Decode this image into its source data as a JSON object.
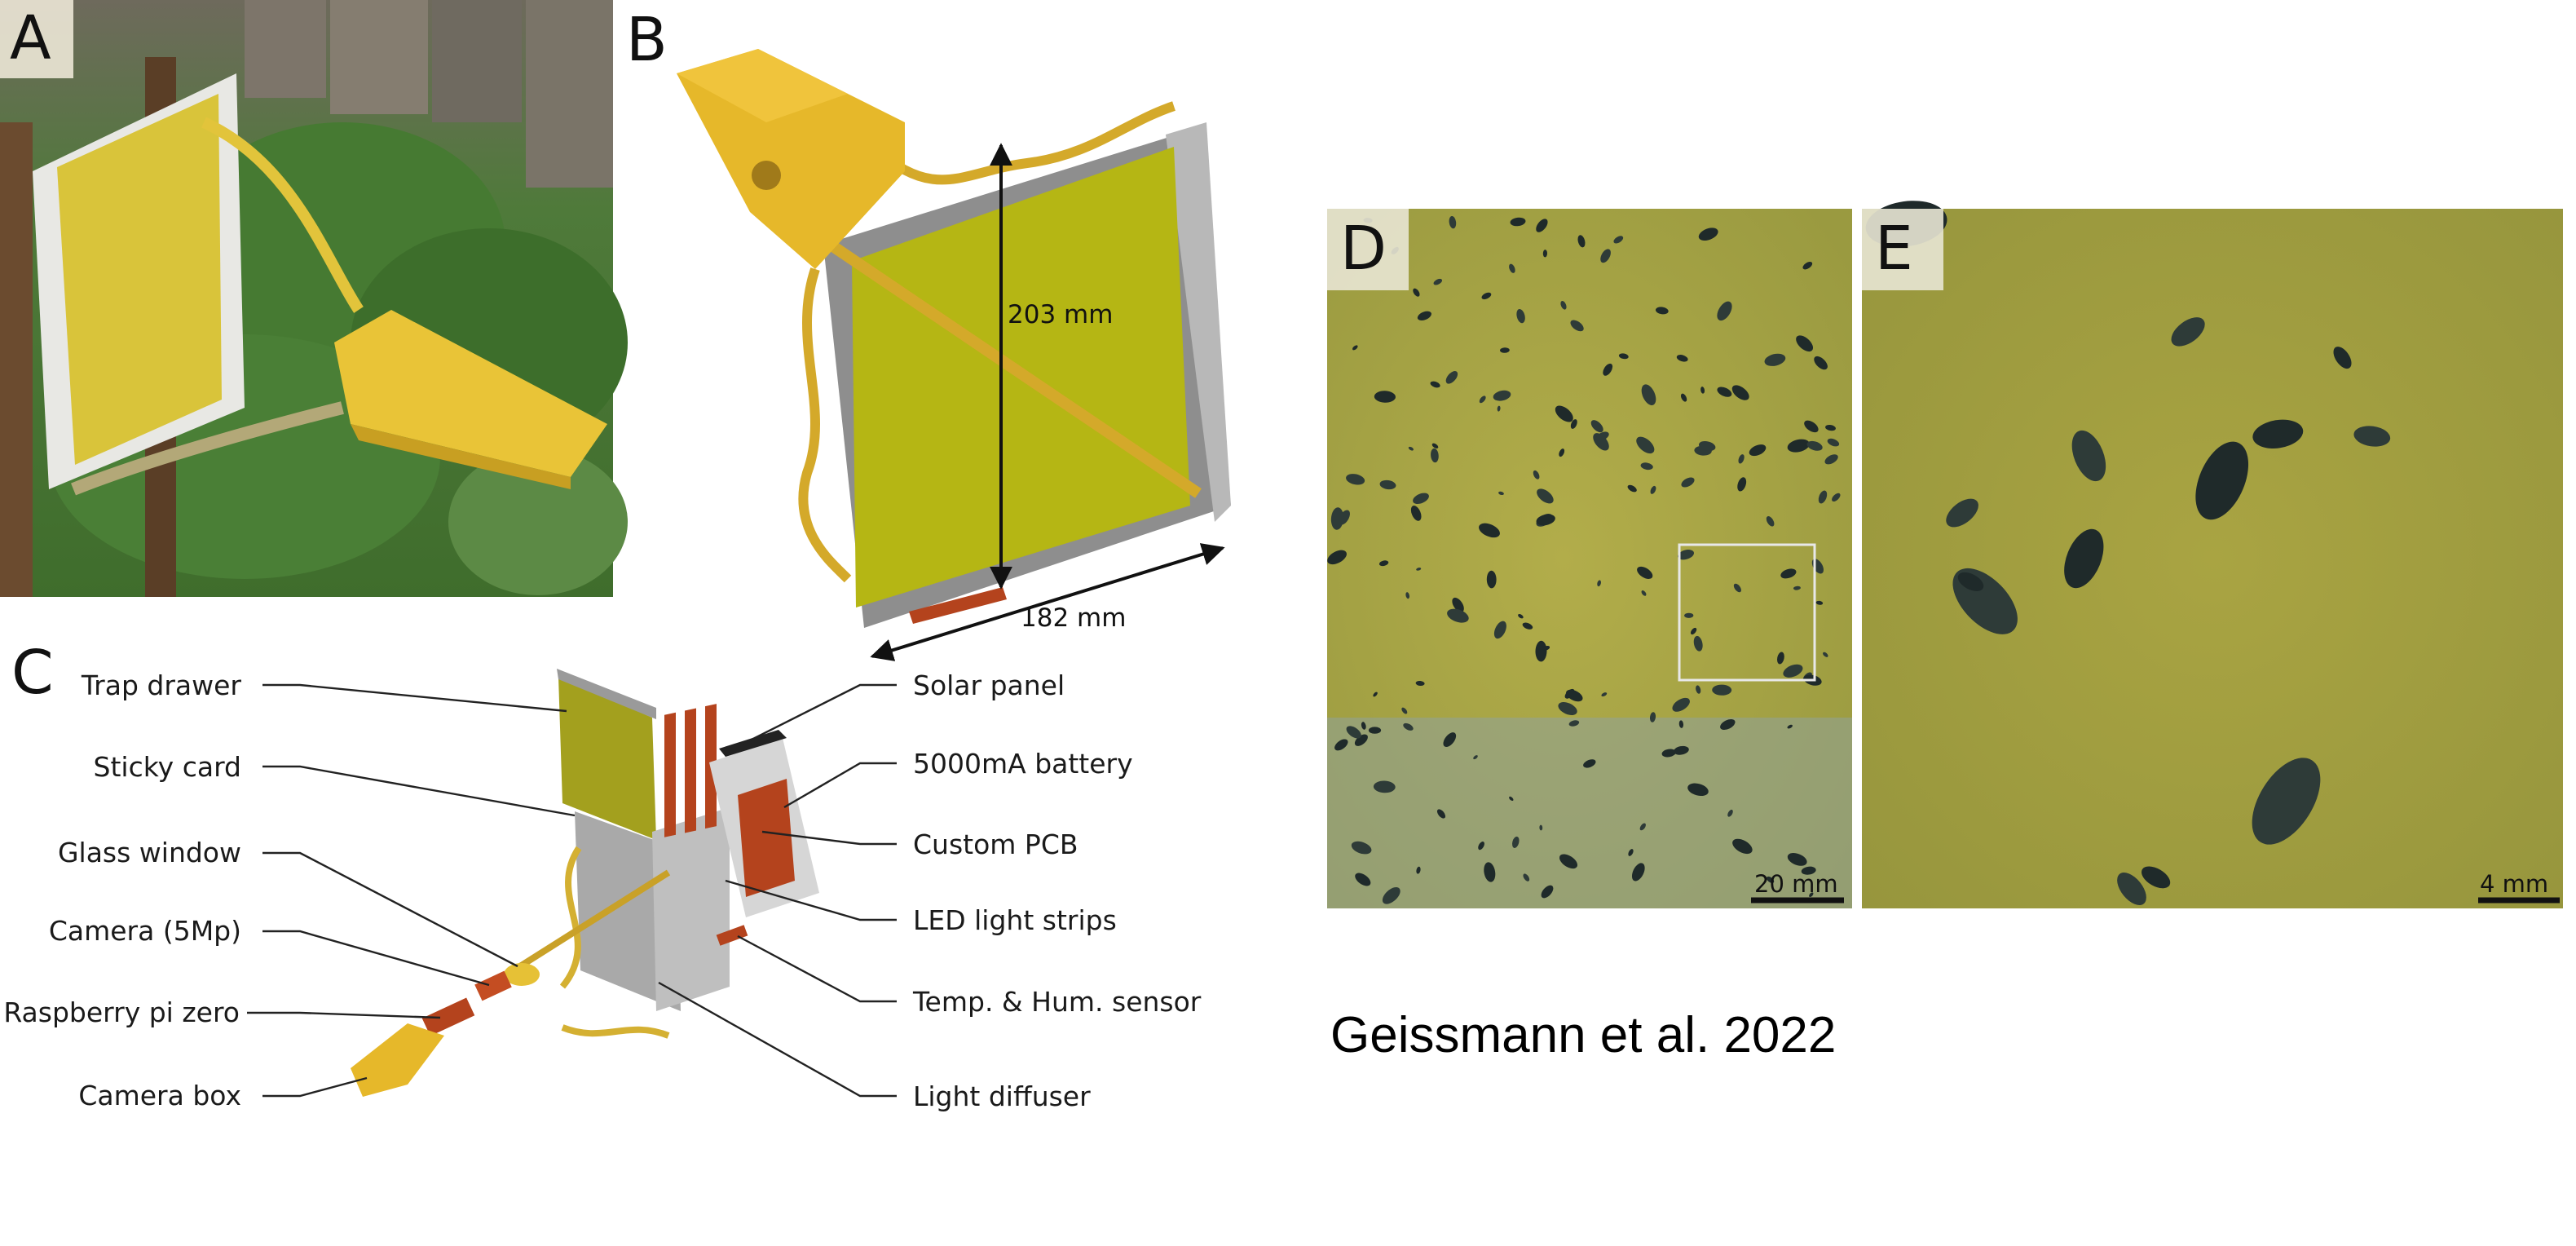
{
  "panels": {
    "a": "A",
    "b": "B",
    "c": "C",
    "d": "D",
    "e": "E"
  },
  "dimensions": {
    "height": "203 mm",
    "width": "182 mm"
  },
  "labels_left": [
    "Trap drawer",
    "Sticky card",
    "Glass window",
    "Camera (5Mp)",
    "Raspberry pi zero",
    "Camera box"
  ],
  "labels_right": [
    "Solar panel",
    "5000mA battery",
    "Custom PCB",
    "LED light strips",
    "Temp. & Hum. sensor",
    "Light diffuser"
  ],
  "scale_bars": {
    "d": "20 mm",
    "e": "4 mm"
  },
  "citation": "Geissmann et al. 2022",
  "colors": {
    "sticky_yellow": "#b5b614",
    "trap_gold": "#e6b82a",
    "pcb_orange": "#b4431d",
    "card_background": "#a9a33e"
  }
}
